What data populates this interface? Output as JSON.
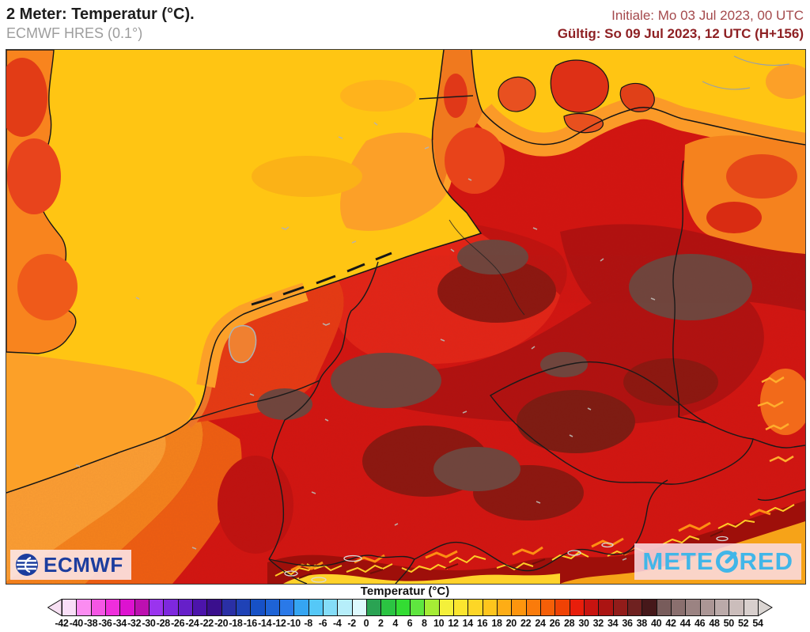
{
  "header": {
    "title": "2 Meter: Temperatur (°C).",
    "model_label": "ECMWF HRES (0.1°)",
    "init_time": "Initiale: Mo 03 Jul 2023, 00 UTC",
    "valid_time": "Gültig: So 09 Jul 2023, 12 UTC (H+156)"
  },
  "branding": {
    "ecmwf": "ECMWF",
    "meteored_prefix": "METE",
    "meteored_suffix": "RED"
  },
  "colorbar": {
    "title": "Temperatur (°C)",
    "tick_labels": [
      "-42",
      "-40",
      "-38",
      "-36",
      "-34",
      "-32",
      "-30",
      "-28",
      "-26",
      "-24",
      "-22",
      "-20",
      "-18",
      "-16",
      "-14",
      "-12",
      "-10",
      "-8",
      "-6",
      "-4",
      "-2",
      "0",
      "2",
      "4",
      "6",
      "8",
      "10",
      "12",
      "14",
      "16",
      "18",
      "20",
      "22",
      "24",
      "26",
      "28",
      "30",
      "32",
      "34",
      "36",
      "38",
      "40",
      "42",
      "44",
      "46",
      "48",
      "50",
      "52",
      "54"
    ],
    "cell_colors": [
      "#F9DEF7",
      "#FB8CF1",
      "#F556E5",
      "#EF2EDC",
      "#DD12D0",
      "#BC10B0",
      "#9A34EE",
      "#7E28DE",
      "#661FC9",
      "#4C14AB",
      "#3A0F8D",
      "#2A2FA5",
      "#1F42B6",
      "#1751C6",
      "#1E63D6",
      "#2A79E8",
      "#35A5F2",
      "#55C8F7",
      "#84DDF8",
      "#B6EEFA",
      "#DDF9FD",
      "#2AA353",
      "#2BC442",
      "#33DC33",
      "#5FE63F",
      "#A5EC35",
      "#F4F03A",
      "#FBE52F",
      "#FDD626",
      "#FEC51D",
      "#FEAD15",
      "#FD950E",
      "#FA7B0B",
      "#F55F08",
      "#EF4205",
      "#E81E0B",
      "#C81410",
      "#AB1412",
      "#921C1A",
      "#6F2120",
      "#46181A",
      "#785C5B",
      "#8A6F6E",
      "#9B8382",
      "#AB9695",
      "#BBAAA9",
      "#CBBDBB",
      "#D8CFCD"
    ],
    "left_arrow_color": "#F7E0F3",
    "right_arrow_color": "#DAD5D2"
  },
  "map_palette": {
    "sea_yellow": "#FFC513",
    "sea_orange": "#FCA028",
    "land_base_red": "#D21511",
    "bright_red_nw": "#E22517",
    "hot_dark_red": "#B11110",
    "hotter_maroon": "#8C1710",
    "hottest_gray_brown": "#6F463E",
    "warm_orange_land": "#F5821C",
    "alps_yellow": "#FFD22A",
    "alps_orange": "#F6A318",
    "border_black": "#1a1a1a",
    "lake_outline": "#d8d8d8",
    "city_gray": "#b9b2ac"
  }
}
